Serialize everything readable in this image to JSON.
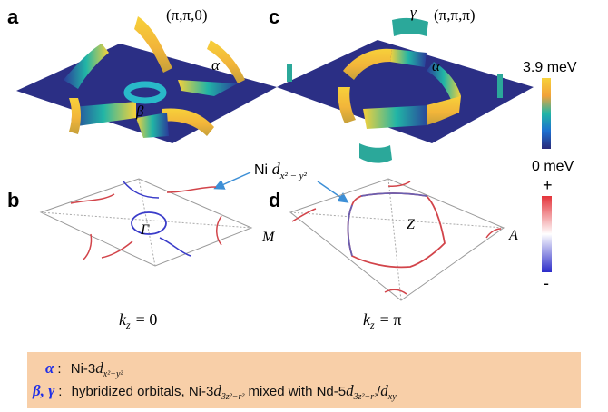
{
  "panels": {
    "a": {
      "letter": "a",
      "point": "(π,π,0)",
      "alpha": "α",
      "beta": "β"
    },
    "b": {
      "letter": "b",
      "gamma_point": "Γ",
      "m_point": "M",
      "kz": "k",
      "kz_sub": "z",
      "kz_eq": "= 0"
    },
    "c": {
      "letter": "c",
      "point": "(π,π,π)",
      "alpha": "α",
      "gamma": "γ"
    },
    "d": {
      "letter": "d",
      "z_point": "Z",
      "a_point": "A",
      "kz": "k",
      "kz_sub": "z",
      "kz_eq": "= π"
    }
  },
  "orbital_callout": {
    "prefix": "Ni ",
    "d": "d",
    "sub": "x² − y²"
  },
  "colorbar_energy": {
    "max": "3.9 meV",
    "min": "0 meV"
  },
  "colorbar_sign": {
    "plus": "+",
    "minus": "-"
  },
  "legend": {
    "row1": {
      "symbol": "α",
      "colon": ":",
      "text_prefix": "Ni-3",
      "d": "d",
      "sub": "x²−y²"
    },
    "row2": {
      "symbol": "β, γ",
      "colon": ":",
      "text_prefix": "hybridized orbitals, Ni-3",
      "d1": "d",
      "sub1": "3z²−r²",
      "mid": " mixed with Nd-5",
      "d2": "d",
      "sub2": "3z²−r²",
      "slash": "/",
      "d3": "d",
      "sub3": "xy"
    }
  },
  "colors": {
    "plane": "#2b2f85",
    "gap_high": "#f7d13a",
    "gap_mid": "#21b5a6",
    "gap_low": "#2a3c9a",
    "sign_pos": "#e4333a",
    "sign_neg": "#3a3cc9",
    "legend_bg": "#f8cfa8",
    "legend_symbol": "#1f2ee6"
  }
}
